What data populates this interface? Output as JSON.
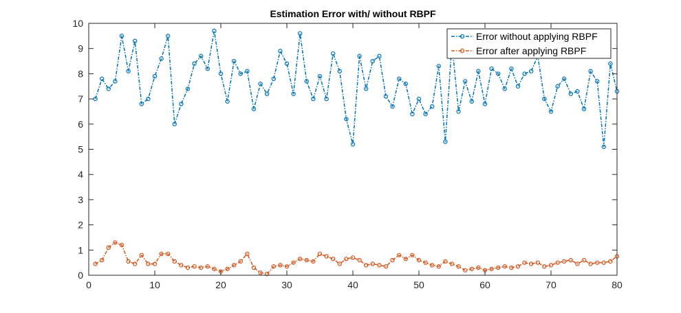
{
  "chart_data": {
    "type": "line",
    "title": "Estimation Error with/ without RBPF",
    "xlabel": "",
    "ylabel": "",
    "xlim": [
      0,
      80
    ],
    "ylim": [
      0,
      10
    ],
    "xticks": [
      0,
      10,
      20,
      30,
      40,
      50,
      60,
      70,
      80
    ],
    "yticks": [
      0,
      1,
      2,
      3,
      4,
      5,
      6,
      7,
      8,
      9,
      10
    ],
    "grid": false,
    "legend_position": "top-right",
    "x": [
      1,
      2,
      3,
      4,
      5,
      6,
      7,
      8,
      9,
      10,
      11,
      12,
      13,
      14,
      15,
      16,
      17,
      18,
      19,
      20,
      21,
      22,
      23,
      24,
      25,
      26,
      27,
      28,
      29,
      30,
      31,
      32,
      33,
      34,
      35,
      36,
      37,
      38,
      39,
      40,
      41,
      42,
      43,
      44,
      45,
      46,
      47,
      48,
      49,
      50,
      51,
      52,
      53,
      54,
      55,
      56,
      57,
      58,
      59,
      60,
      61,
      62,
      63,
      64,
      65,
      66,
      67,
      68,
      69,
      70,
      71,
      72,
      73,
      74,
      75,
      76,
      77,
      78,
      79,
      80
    ],
    "series": [
      {
        "name": "Error without applying RBPF",
        "color": "#0072BD",
        "values": [
          7.0,
          7.8,
          7.4,
          7.7,
          9.5,
          8.1,
          9.3,
          6.8,
          7.0,
          7.9,
          8.6,
          9.5,
          6.0,
          6.8,
          7.4,
          8.4,
          8.7,
          8.2,
          9.7,
          8.0,
          6.9,
          8.5,
          8.0,
          8.1,
          6.6,
          7.6,
          7.2,
          7.8,
          8.9,
          8.4,
          7.2,
          9.6,
          7.7,
          7.0,
          7.9,
          7.0,
          8.8,
          8.1,
          6.2,
          5.2,
          8.7,
          7.4,
          8.5,
          8.7,
          7.1,
          6.7,
          7.8,
          7.6,
          6.4,
          7.0,
          6.4,
          6.7,
          8.3,
          5.3,
          9.2,
          6.5,
          7.7,
          6.9,
          8.1,
          6.8,
          8.2,
          8.0,
          7.4,
          8.2,
          7.5,
          8.0,
          8.1,
          8.7,
          7.0,
          6.5,
          7.5,
          7.8,
          7.2,
          7.3,
          6.6,
          8.1,
          7.7,
          5.1,
          8.4,
          7.3
        ]
      },
      {
        "name": "Error after applying RBPF",
        "color": "#D95319",
        "values": [
          0.45,
          0.6,
          1.1,
          1.3,
          1.2,
          0.55,
          0.45,
          0.8,
          0.45,
          0.45,
          0.85,
          0.85,
          0.55,
          0.4,
          0.3,
          0.35,
          0.3,
          0.35,
          0.25,
          0.15,
          0.25,
          0.4,
          0.55,
          0.85,
          0.3,
          0.1,
          0.05,
          0.35,
          0.4,
          0.35,
          0.5,
          0.65,
          0.6,
          0.55,
          0.85,
          0.75,
          0.65,
          0.45,
          0.65,
          0.7,
          0.6,
          0.4,
          0.45,
          0.4,
          0.35,
          0.6,
          0.8,
          0.65,
          0.8,
          0.6,
          0.5,
          0.4,
          0.35,
          0.55,
          0.45,
          0.35,
          0.2,
          0.25,
          0.3,
          0.2,
          0.25,
          0.3,
          0.35,
          0.3,
          0.35,
          0.5,
          0.45,
          0.5,
          0.35,
          0.4,
          0.5,
          0.55,
          0.6,
          0.45,
          0.6,
          0.45,
          0.5,
          0.5,
          0.55,
          0.75
        ]
      }
    ]
  }
}
